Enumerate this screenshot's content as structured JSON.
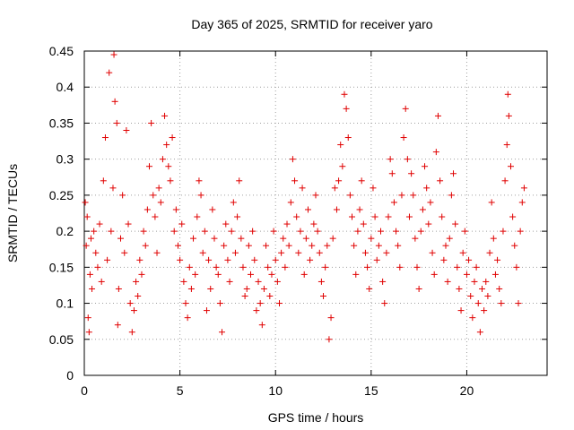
{
  "chart_data": {
    "type": "scatter",
    "title": "Day 365 of 2025, SRMTID for receiver yaro",
    "xlabel": "GPS time / hours",
    "ylabel": "SRMTID / TECUs",
    "xlim": [
      0,
      24.2
    ],
    "ylim": [
      0,
      0.45
    ],
    "xticks": [
      0,
      5,
      10,
      15,
      20
    ],
    "yticks": [
      0,
      0.05,
      0.1,
      0.15,
      0.2,
      0.25,
      0.3,
      0.35,
      0.4,
      0.45
    ],
    "grid": true,
    "marker": "+",
    "color": "#e00000",
    "series": [
      {
        "name": "SRMTID",
        "points": [
          [
            0.05,
            0.24
          ],
          [
            0.1,
            0.18
          ],
          [
            0.15,
            0.22
          ],
          [
            0.2,
            0.08
          ],
          [
            0.25,
            0.06
          ],
          [
            0.3,
            0.14
          ],
          [
            0.35,
            0.19
          ],
          [
            0.4,
            0.12
          ],
          [
            0.5,
            0.2
          ],
          [
            0.6,
            0.17
          ],
          [
            0.7,
            0.15
          ],
          [
            0.8,
            0.21
          ],
          [
            0.9,
            0.13
          ],
          [
            1.0,
            0.27
          ],
          [
            1.1,
            0.33
          ],
          [
            1.2,
            0.16
          ],
          [
            1.3,
            0.42
          ],
          [
            1.4,
            0.2
          ],
          [
            1.5,
            0.26
          ],
          [
            1.55,
            0.445
          ],
          [
            1.6,
            0.38
          ],
          [
            1.7,
            0.35
          ],
          [
            1.75,
            0.07
          ],
          [
            1.8,
            0.12
          ],
          [
            1.9,
            0.19
          ],
          [
            2.0,
            0.25
          ],
          [
            2.1,
            0.17
          ],
          [
            2.2,
            0.34
          ],
          [
            2.3,
            0.21
          ],
          [
            2.4,
            0.1
          ],
          [
            2.5,
            0.06
          ],
          [
            2.6,
            0.09
          ],
          [
            2.7,
            0.13
          ],
          [
            2.8,
            0.11
          ],
          [
            2.9,
            0.16
          ],
          [
            3.0,
            0.14
          ],
          [
            3.1,
            0.2
          ],
          [
            3.2,
            0.18
          ],
          [
            3.3,
            0.23
          ],
          [
            3.4,
            0.29
          ],
          [
            3.5,
            0.35
          ],
          [
            3.6,
            0.25
          ],
          [
            3.7,
            0.22
          ],
          [
            3.8,
            0.17
          ],
          [
            3.9,
            0.26
          ],
          [
            4.0,
            0.24
          ],
          [
            4.1,
            0.3
          ],
          [
            4.2,
            0.36
          ],
          [
            4.3,
            0.32
          ],
          [
            4.4,
            0.29
          ],
          [
            4.5,
            0.27
          ],
          [
            4.6,
            0.33
          ],
          [
            4.7,
            0.2
          ],
          [
            4.8,
            0.23
          ],
          [
            4.9,
            0.18
          ],
          [
            5.0,
            0.16
          ],
          [
            5.1,
            0.21
          ],
          [
            5.2,
            0.13
          ],
          [
            5.3,
            0.1
          ],
          [
            5.4,
            0.08
          ],
          [
            5.5,
            0.15
          ],
          [
            5.6,
            0.12
          ],
          [
            5.7,
            0.19
          ],
          [
            5.8,
            0.14
          ],
          [
            5.9,
            0.22
          ],
          [
            6.0,
            0.27
          ],
          [
            6.1,
            0.25
          ],
          [
            6.2,
            0.17
          ],
          [
            6.3,
            0.2
          ],
          [
            6.4,
            0.09
          ],
          [
            6.5,
            0.16
          ],
          [
            6.6,
            0.12
          ],
          [
            6.7,
            0.23
          ],
          [
            6.8,
            0.19
          ],
          [
            6.9,
            0.15
          ],
          [
            7.0,
            0.14
          ],
          [
            7.1,
            0.1
          ],
          [
            7.2,
            0.06
          ],
          [
            7.3,
            0.18
          ],
          [
            7.4,
            0.21
          ],
          [
            7.5,
            0.16
          ],
          [
            7.6,
            0.13
          ],
          [
            7.7,
            0.2
          ],
          [
            7.8,
            0.24
          ],
          [
            7.9,
            0.17
          ],
          [
            8.0,
            0.22
          ],
          [
            8.1,
            0.27
          ],
          [
            8.2,
            0.19
          ],
          [
            8.3,
            0.15
          ],
          [
            8.4,
            0.11
          ],
          [
            8.5,
            0.12
          ],
          [
            8.6,
            0.18
          ],
          [
            8.7,
            0.14
          ],
          [
            8.8,
            0.2
          ],
          [
            8.9,
            0.16
          ],
          [
            9.0,
            0.09
          ],
          [
            9.1,
            0.13
          ],
          [
            9.2,
            0.1
          ],
          [
            9.3,
            0.07
          ],
          [
            9.4,
            0.12
          ],
          [
            9.5,
            0.18
          ],
          [
            9.6,
            0.15
          ],
          [
            9.7,
            0.11
          ],
          [
            9.8,
            0.14
          ],
          [
            9.9,
            0.2
          ],
          [
            10.0,
            0.16
          ],
          [
            10.1,
            0.13
          ],
          [
            10.2,
            0.1
          ],
          [
            10.3,
            0.17
          ],
          [
            10.4,
            0.19
          ],
          [
            10.5,
            0.15
          ],
          [
            10.6,
            0.21
          ],
          [
            10.7,
            0.18
          ],
          [
            10.8,
            0.24
          ],
          [
            10.9,
            0.3
          ],
          [
            11.0,
            0.27
          ],
          [
            11.1,
            0.22
          ],
          [
            11.2,
            0.17
          ],
          [
            11.3,
            0.2
          ],
          [
            11.4,
            0.26
          ],
          [
            11.5,
            0.14
          ],
          [
            11.6,
            0.19
          ],
          [
            11.7,
            0.23
          ],
          [
            11.8,
            0.16
          ],
          [
            11.9,
            0.18
          ],
          [
            12.0,
            0.21
          ],
          [
            12.1,
            0.25
          ],
          [
            12.2,
            0.2
          ],
          [
            12.3,
            0.17
          ],
          [
            12.4,
            0.13
          ],
          [
            12.5,
            0.11
          ],
          [
            12.6,
            0.15
          ],
          [
            12.7,
            0.18
          ],
          [
            12.8,
            0.05
          ],
          [
            12.9,
            0.08
          ],
          [
            13.0,
            0.19
          ],
          [
            13.1,
            0.26
          ],
          [
            13.2,
            0.23
          ],
          [
            13.3,
            0.27
          ],
          [
            13.4,
            0.32
          ],
          [
            13.5,
            0.29
          ],
          [
            13.6,
            0.39
          ],
          [
            13.7,
            0.37
          ],
          [
            13.8,
            0.33
          ],
          [
            13.9,
            0.25
          ],
          [
            14.0,
            0.22
          ],
          [
            14.1,
            0.18
          ],
          [
            14.2,
            0.14
          ],
          [
            14.3,
            0.2
          ],
          [
            14.4,
            0.23
          ],
          [
            14.5,
            0.27
          ],
          [
            14.6,
            0.21
          ],
          [
            14.7,
            0.17
          ],
          [
            14.8,
            0.15
          ],
          [
            14.9,
            0.12
          ],
          [
            15.0,
            0.19
          ],
          [
            15.1,
            0.26
          ],
          [
            15.2,
            0.22
          ],
          [
            15.3,
            0.16
          ],
          [
            15.4,
            0.18
          ],
          [
            15.5,
            0.2
          ],
          [
            15.6,
            0.13
          ],
          [
            15.7,
            0.1
          ],
          [
            15.8,
            0.17
          ],
          [
            15.9,
            0.22
          ],
          [
            16.0,
            0.3
          ],
          [
            16.1,
            0.28
          ],
          [
            16.2,
            0.24
          ],
          [
            16.3,
            0.2
          ],
          [
            16.4,
            0.18
          ],
          [
            16.5,
            0.15
          ],
          [
            16.6,
            0.25
          ],
          [
            16.7,
            0.33
          ],
          [
            16.8,
            0.37
          ],
          [
            16.9,
            0.3
          ],
          [
            17.0,
            0.22
          ],
          [
            17.1,
            0.28
          ],
          [
            17.2,
            0.25
          ],
          [
            17.3,
            0.19
          ],
          [
            17.4,
            0.15
          ],
          [
            17.5,
            0.12
          ],
          [
            17.6,
            0.2
          ],
          [
            17.7,
            0.23
          ],
          [
            17.8,
            0.29
          ],
          [
            17.9,
            0.26
          ],
          [
            18.0,
            0.21
          ],
          [
            18.1,
            0.24
          ],
          [
            18.2,
            0.17
          ],
          [
            18.3,
            0.14
          ],
          [
            18.4,
            0.31
          ],
          [
            18.5,
            0.36
          ],
          [
            18.6,
            0.27
          ],
          [
            18.7,
            0.22
          ],
          [
            18.8,
            0.16
          ],
          [
            18.9,
            0.18
          ],
          [
            19.0,
            0.13
          ],
          [
            19.1,
            0.19
          ],
          [
            19.2,
            0.25
          ],
          [
            19.3,
            0.28
          ],
          [
            19.4,
            0.21
          ],
          [
            19.5,
            0.15
          ],
          [
            19.6,
            0.12
          ],
          [
            19.7,
            0.09
          ],
          [
            19.8,
            0.17
          ],
          [
            19.9,
            0.2
          ],
          [
            20.0,
            0.14
          ],
          [
            20.1,
            0.16
          ],
          [
            20.2,
            0.11
          ],
          [
            20.3,
            0.08
          ],
          [
            20.4,
            0.13
          ],
          [
            20.5,
            0.15
          ],
          [
            20.6,
            0.1
          ],
          [
            20.7,
            0.06
          ],
          [
            20.8,
            0.12
          ],
          [
            20.9,
            0.09
          ],
          [
            21.0,
            0.13
          ],
          [
            21.1,
            0.11
          ],
          [
            21.2,
            0.17
          ],
          [
            21.3,
            0.24
          ],
          [
            21.4,
            0.19
          ],
          [
            21.5,
            0.14
          ],
          [
            21.6,
            0.16
          ],
          [
            21.7,
            0.12
          ],
          [
            21.8,
            0.1
          ],
          [
            21.9,
            0.2
          ],
          [
            22.0,
            0.27
          ],
          [
            22.1,
            0.32
          ],
          [
            22.15,
            0.39
          ],
          [
            22.2,
            0.36
          ],
          [
            22.3,
            0.29
          ],
          [
            22.4,
            0.22
          ],
          [
            22.5,
            0.18
          ],
          [
            22.6,
            0.15
          ],
          [
            22.7,
            0.1
          ],
          [
            22.8,
            0.2
          ],
          [
            22.9,
            0.24
          ],
          [
            23.0,
            0.26
          ]
        ]
      }
    ]
  }
}
